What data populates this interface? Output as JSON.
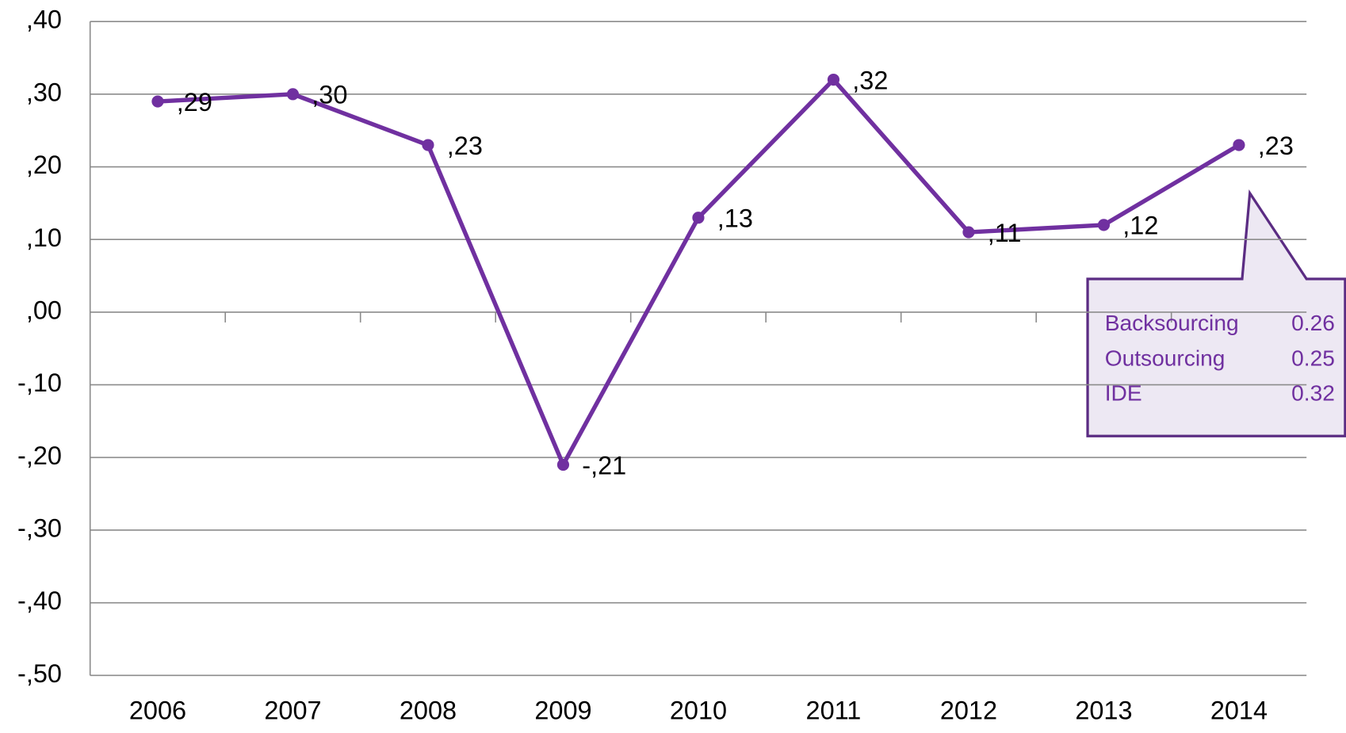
{
  "chart_data": {
    "type": "line",
    "categories": [
      "2006",
      "2007",
      "2008",
      "2009",
      "2010",
      "2011",
      "2012",
      "2013",
      "2014"
    ],
    "values": [
      0.29,
      0.3,
      0.23,
      -0.21,
      0.13,
      0.32,
      0.11,
      0.12,
      0.23
    ],
    "value_labels": [
      ",29",
      ",30",
      ",23",
      "-,21",
      ",13",
      ",32",
      ",11",
      ",12",
      ",23"
    ],
    "color": "#7030a0",
    "ylim": [
      -0.5,
      0.4
    ],
    "yticks": [
      {
        "value": 0.4,
        "label": ",40"
      },
      {
        "value": 0.3,
        "label": ",30"
      },
      {
        "value": 0.2,
        "label": ",20"
      },
      {
        "value": 0.1,
        "label": ",10"
      },
      {
        "value": 0,
        "label": ",00"
      },
      {
        "value": -0.1,
        "label": "-,10"
      },
      {
        "value": -0.2,
        "label": "-,20"
      },
      {
        "value": -0.3,
        "label": "-,30"
      },
      {
        "value": -0.4,
        "label": "-,40"
      },
      {
        "value": -0.5,
        "label": "-,50"
      }
    ],
    "grid": true,
    "callout": {
      "rows": [
        [
          "Backsourcing",
          0.26
        ],
        [
          "Outsourcing",
          0.25
        ],
        [
          "IDE",
          0.32
        ]
      ]
    }
  }
}
